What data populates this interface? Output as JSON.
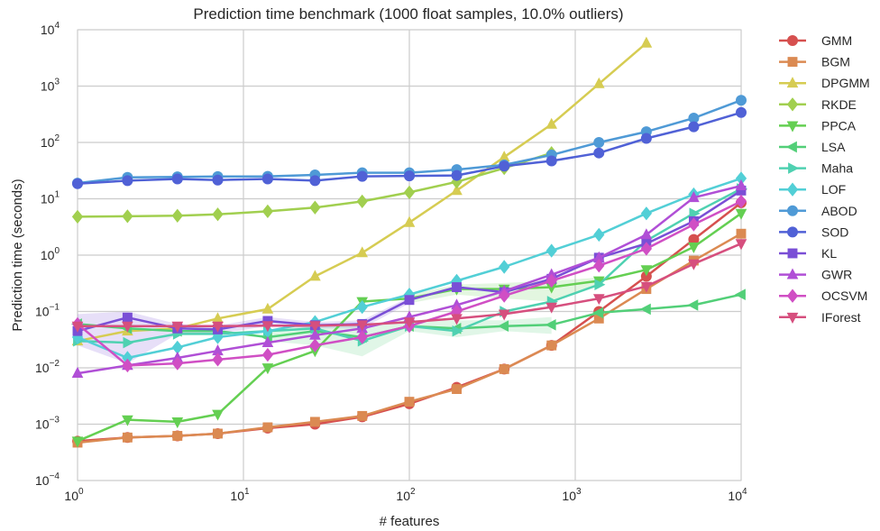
{
  "chart_data": {
    "type": "line",
    "title": "Prediction time benchmark (1000 float samples, 10.0% outliers)",
    "xlabel": "# features",
    "ylabel": "Prediction time (seconds)",
    "x_scale": "log",
    "y_scale": "log",
    "xlim": [
      1,
      10000
    ],
    "ylim": [
      0.0001,
      10000
    ],
    "x_ticks": [
      {
        "base": "10",
        "exp": "0",
        "value": 1
      },
      {
        "base": "10",
        "exp": "1",
        "value": 10
      },
      {
        "base": "10",
        "exp": "2",
        "value": 100
      },
      {
        "base": "10",
        "exp": "3",
        "value": 1000
      },
      {
        "base": "10",
        "exp": "4",
        "value": 10000
      }
    ],
    "y_ticks": [
      {
        "base": "10",
        "exp": "−4",
        "value": 0.0001
      },
      {
        "base": "10",
        "exp": "−3",
        "value": 0.001
      },
      {
        "base": "10",
        "exp": "−2",
        "value": 0.01
      },
      {
        "base": "10",
        "exp": "−1",
        "value": 0.1
      },
      {
        "base": "10",
        "exp": "0",
        "value": 1
      },
      {
        "base": "10",
        "exp": "1",
        "value": 10
      },
      {
        "base": "10",
        "exp": "2",
        "value": 100
      },
      {
        "base": "10",
        "exp": "3",
        "value": 1000
      },
      {
        "base": "10",
        "exp": "4",
        "value": 10000
      }
    ],
    "grid": true,
    "legend_position": "outside-right",
    "series": [
      {
        "name": "GMM",
        "color": "#d6504f",
        "marker": "circle",
        "x": [
          1,
          2,
          4,
          7,
          14,
          27,
          52,
          100,
          193,
          373,
          720,
          1389,
          2683,
          5179,
          10000
        ],
        "y": [
          0.0005,
          0.00058,
          0.00062,
          0.00068,
          0.00085,
          0.001,
          0.00135,
          0.0023,
          0.0045,
          0.0095,
          0.025,
          0.1,
          0.42,
          1.9,
          8.5
        ]
      },
      {
        "name": "BGM",
        "color": "#db8a52",
        "marker": "square",
        "x": [
          1,
          2,
          4,
          7,
          14,
          27,
          52,
          100,
          193,
          373,
          720,
          1389,
          2683,
          5179,
          10000
        ],
        "y": [
          0.00047,
          0.00058,
          0.00062,
          0.00068,
          0.00088,
          0.0011,
          0.0014,
          0.0025,
          0.0042,
          0.0095,
          0.025,
          0.075,
          0.25,
          0.8,
          2.4
        ]
      },
      {
        "name": "DPGMM",
        "color": "#d6cc52",
        "marker": "triangle-up",
        "x": [
          1,
          2,
          4,
          7,
          14,
          27,
          52,
          100,
          193,
          373,
          720,
          1389,
          2683
        ],
        "y": [
          0.03,
          0.045,
          0.05,
          0.075,
          0.11,
          0.42,
          1.1,
          3.8,
          14,
          55,
          210,
          1100,
          5800
        ]
      },
      {
        "name": "RKDE",
        "color": "#a1cf4f",
        "marker": "diamond",
        "x": [
          1,
          2,
          4,
          7,
          14,
          27,
          52,
          100,
          193,
          373,
          720
        ],
        "y": [
          4.8,
          4.9,
          5.0,
          5.3,
          6.0,
          7.0,
          9.0,
          13,
          20,
          35,
          65
        ]
      },
      {
        "name": "PPCA",
        "color": "#64cf52",
        "marker": "triangle-down",
        "x": [
          1,
          2,
          4,
          7,
          14,
          27,
          52,
          100,
          193,
          373,
          720,
          1389,
          2683,
          5179,
          10000
        ],
        "y": [
          0.0005,
          0.0012,
          0.0011,
          0.0015,
          0.01,
          0.02,
          0.15,
          0.17,
          0.25,
          0.25,
          0.27,
          0.35,
          0.55,
          1.4,
          5.5
        ]
      },
      {
        "name": "LSA",
        "color": "#52cf78",
        "marker": "triangle-left",
        "x": [
          1,
          2,
          4,
          7,
          14,
          27,
          52,
          100,
          193,
          373,
          720,
          1389,
          2683,
          5179,
          10000
        ],
        "y": [
          0.06,
          0.05,
          0.045,
          0.045,
          0.035,
          0.045,
          0.035,
          0.055,
          0.05,
          0.055,
          0.058,
          0.095,
          0.11,
          0.13,
          0.2
        ]
      },
      {
        "name": "Maha",
        "color": "#4fd1b1",
        "marker": "triangle-right",
        "x": [
          1,
          2,
          4,
          7,
          14,
          27,
          52,
          100,
          193,
          373,
          720,
          1389,
          2683,
          5179,
          10000
        ],
        "y": [
          0.03,
          0.028,
          0.04,
          0.04,
          0.045,
          0.05,
          0.03,
          0.055,
          0.045,
          0.1,
          0.15,
          0.3,
          1.8,
          5.5,
          15
        ]
      },
      {
        "name": "LOF",
        "color": "#52cfd6",
        "marker": "diamond",
        "x": [
          1,
          2,
          4,
          7,
          14,
          27,
          52,
          100,
          193,
          373,
          720,
          1389,
          2683,
          5179,
          10000
        ],
        "y": [
          0.035,
          0.015,
          0.023,
          0.035,
          0.045,
          0.065,
          0.12,
          0.2,
          0.35,
          0.62,
          1.2,
          2.3,
          5.5,
          12,
          23
        ]
      },
      {
        "name": "ABOD",
        "color": "#4f9ad6",
        "marker": "circle",
        "x": [
          1,
          2,
          4,
          7,
          14,
          27,
          52,
          100,
          193,
          373,
          720,
          1389,
          2683,
          5179,
          10000
        ],
        "y": [
          19,
          24,
          24.5,
          24.8,
          25,
          26.5,
          29,
          29,
          33,
          40,
          60,
          100,
          155,
          270,
          560
        ]
      },
      {
        "name": "SOD",
        "color": "#5061d6",
        "marker": "circle",
        "x": [
          1,
          2,
          4,
          7,
          14,
          27,
          52,
          100,
          193,
          373,
          720,
          1389,
          2683,
          5179,
          10000
        ],
        "y": [
          18.5,
          21,
          22.5,
          21.5,
          22.5,
          21,
          25,
          25.5,
          26,
          38,
          47,
          65,
          118,
          190,
          340
        ]
      },
      {
        "name": "KL",
        "color": "#7a4fd6",
        "marker": "square",
        "x": [
          1,
          2,
          4,
          7,
          14,
          27,
          52,
          100,
          193,
          373,
          720,
          1389,
          2683,
          5179,
          10000
        ],
        "y": [
          0.045,
          0.078,
          0.05,
          0.048,
          0.068,
          0.057,
          0.06,
          0.16,
          0.27,
          0.22,
          0.38,
          0.9,
          1.6,
          4.0,
          14
        ]
      },
      {
        "name": "GWR",
        "color": "#b04fd6",
        "marker": "triangle-up",
        "x": [
          1,
          2,
          4,
          7,
          14,
          27,
          52,
          100,
          193,
          373,
          720,
          1389,
          2683,
          5179,
          10000
        ],
        "y": [
          0.008,
          0.011,
          0.015,
          0.02,
          0.028,
          0.038,
          0.05,
          0.08,
          0.13,
          0.23,
          0.45,
          0.9,
          2.3,
          10.5,
          17
        ]
      },
      {
        "name": "OCSVM",
        "color": "#d04fc4",
        "marker": "diamond",
        "x": [
          1,
          2,
          4,
          7,
          14,
          27,
          52,
          100,
          193,
          373,
          720,
          1389,
          2683,
          5179,
          10000
        ],
        "y": [
          0.06,
          0.011,
          0.012,
          0.014,
          0.017,
          0.025,
          0.035,
          0.055,
          0.1,
          0.19,
          0.35,
          0.65,
          1.3,
          3.5,
          9
        ]
      },
      {
        "name": "IForest",
        "color": "#d64f7e",
        "marker": "triangle-down",
        "x": [
          1,
          2,
          4,
          7,
          14,
          27,
          52,
          100,
          193,
          373,
          720,
          1389,
          2683,
          5179,
          10000
        ],
        "y": [
          0.055,
          0.055,
          0.055,
          0.055,
          0.056,
          0.056,
          0.058,
          0.065,
          0.075,
          0.09,
          0.12,
          0.17,
          0.28,
          0.7,
          1.6
        ]
      }
    ],
    "bands": [
      {
        "series": "KL",
        "color": "#7a4fd6",
        "x": [
          1,
          2,
          4,
          7,
          14,
          27,
          52,
          100
        ],
        "lower": [
          0.025,
          0.012,
          0.04,
          0.04,
          0.055,
          0.05,
          0.05,
          0.14
        ],
        "upper": [
          0.09,
          0.1,
          0.06,
          0.056,
          0.08,
          0.065,
          0.07,
          0.18
        ]
      },
      {
        "series": "LSA",
        "color": "#52cf78",
        "x": [
          14,
          27,
          52,
          100,
          193,
          373,
          720
        ],
        "lower": [
          0.03,
          0.025,
          0.016,
          0.045,
          0.035,
          0.045,
          0.04
        ],
        "upper": [
          0.045,
          0.06,
          0.06,
          0.07,
          0.07,
          0.07,
          0.08
        ]
      },
      {
        "series": "PPCA",
        "color": "#64cf52",
        "x": [
          100,
          193,
          373,
          720,
          1389
        ],
        "lower": [
          0.14,
          0.2,
          0.17,
          0.15,
          0.3
        ],
        "upper": [
          0.2,
          0.3,
          0.32,
          0.35,
          0.4
        ]
      }
    ]
  }
}
